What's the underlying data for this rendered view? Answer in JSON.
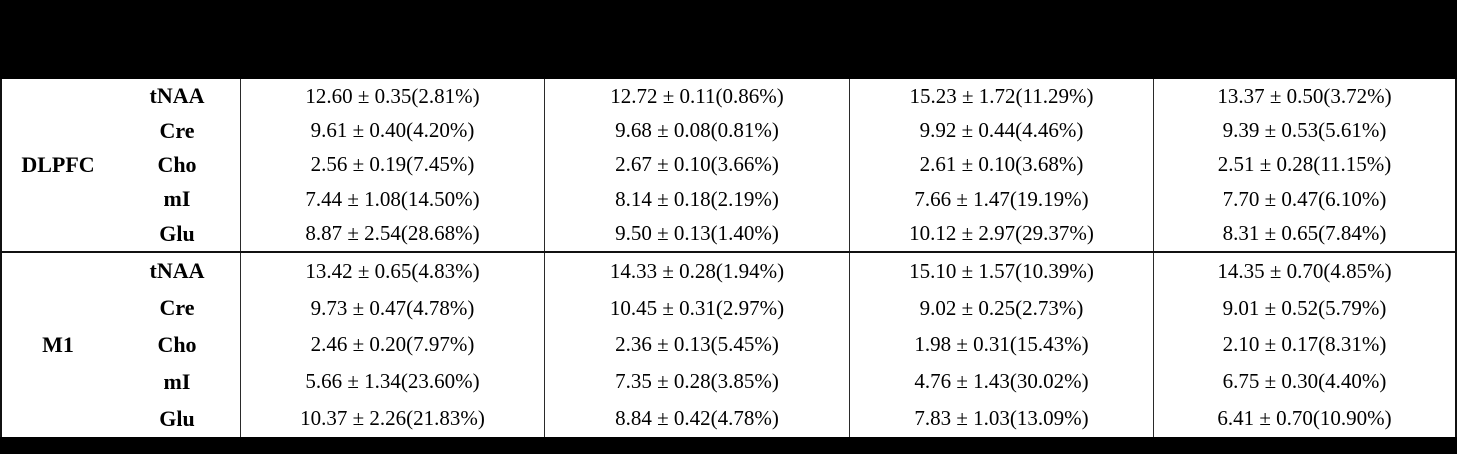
{
  "colors": {
    "page_background": "#000000",
    "table_background": "#ffffff",
    "border": "#111111",
    "text": "#000000"
  },
  "table": {
    "sections": [
      {
        "region": "DLPFC",
        "rows": [
          {
            "metabolite": "tNAA",
            "values": [
              "12.60 ± 0.35(2.81%)",
              "12.72 ± 0.11(0.86%)",
              "15.23 ± 1.72(11.29%)",
              "13.37 ± 0.50(3.72%)"
            ]
          },
          {
            "metabolite": "Cre",
            "values": [
              "9.61 ± 0.40(4.20%)",
              "9.68 ± 0.08(0.81%)",
              "9.92 ± 0.44(4.46%)",
              "9.39 ± 0.53(5.61%)"
            ]
          },
          {
            "metabolite": "Cho",
            "values": [
              "2.56 ± 0.19(7.45%)",
              "2.67 ± 0.10(3.66%)",
              "2.61 ± 0.10(3.68%)",
              "2.51 ± 0.28(11.15%)"
            ]
          },
          {
            "metabolite": "mI",
            "values": [
              "7.44 ± 1.08(14.50%)",
              "8.14 ± 0.18(2.19%)",
              "7.66 ± 1.47(19.19%)",
              "7.70 ± 0.47(6.10%)"
            ]
          },
          {
            "metabolite": "Glu",
            "values": [
              "8.87 ± 2.54(28.68%)",
              "9.50 ± 0.13(1.40%)",
              "10.12 ± 2.97(29.37%)",
              "8.31 ± 0.65(7.84%)"
            ]
          }
        ]
      },
      {
        "region": "M1",
        "rows": [
          {
            "metabolite": "tNAA",
            "values": [
              "13.42 ± 0.65(4.83%)",
              "14.33 ± 0.28(1.94%)",
              "15.10 ± 1.57(10.39%)",
              "14.35 ± 0.70(4.85%)"
            ]
          },
          {
            "metabolite": "Cre",
            "values": [
              "9.73 ± 0.47(4.78%)",
              "10.45 ± 0.31(2.97%)",
              "9.02 ± 0.25(2.73%)",
              "9.01 ± 0.52(5.79%)"
            ]
          },
          {
            "metabolite": "Cho",
            "values": [
              "2.46 ± 0.20(7.97%)",
              "2.36 ± 0.13(5.45%)",
              "1.98 ± 0.31(15.43%)",
              "2.10 ± 0.17(8.31%)"
            ]
          },
          {
            "metabolite": "mI",
            "values": [
              "5.66 ± 1.34(23.60%)",
              "7.35 ± 0.28(3.85%)",
              "4.76 ± 1.43(30.02%)",
              "6.75 ± 0.30(4.40%)"
            ]
          },
          {
            "metabolite": "Glu",
            "values": [
              "10.37 ± 2.26(21.83%)",
              "8.84 ± 0.42(4.78%)",
              "7.83 ± 1.03(13.09%)",
              "6.41 ± 0.70(10.90%)"
            ]
          }
        ]
      }
    ]
  }
}
